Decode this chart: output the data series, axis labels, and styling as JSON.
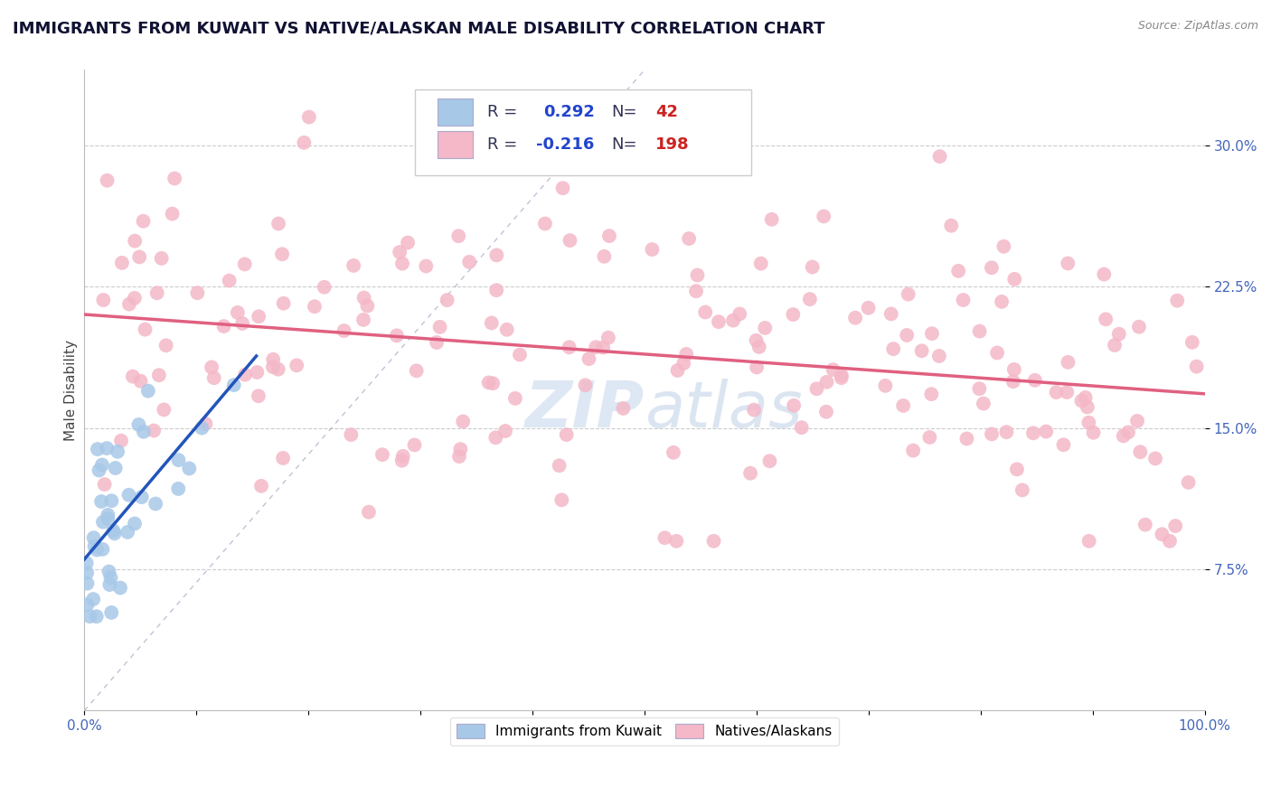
{
  "title": "IMMIGRANTS FROM KUWAIT VS NATIVE/ALASKAN MALE DISABILITY CORRELATION CHART",
  "source": "Source: ZipAtlas.com",
  "ylabel": "Male Disability",
  "blue_label": "Immigrants from Kuwait",
  "pink_label": "Natives/Alaskans",
  "blue_R": 0.292,
  "blue_N": 42,
  "pink_R": -0.216,
  "pink_N": 198,
  "xlim": [
    0.0,
    1.0
  ],
  "ylim": [
    0.0,
    0.34
  ],
  "ytick_vals": [
    0.075,
    0.15,
    0.225,
    0.3
  ],
  "ytick_labels": [
    "7.5%",
    "15.0%",
    "22.5%",
    "30.0%"
  ],
  "xtick_vals": [
    0.0,
    1.0
  ],
  "xtick_labels": [
    "0.0%",
    "100.0%"
  ],
  "blue_scatter_color": "#a8c8e8",
  "pink_scatter_color": "#f4b8c8",
  "blue_line_color": "#2255bb",
  "pink_line_color": "#e06080",
  "grid_color": "#cccccc",
  "diag_color": "#9999bb",
  "background_color": "#ffffff",
  "title_fontsize": 13,
  "tick_fontsize": 11,
  "tick_color": "#4466bb",
  "legend_fontsize": 13,
  "watermark_color": "#c8d8ee",
  "source_color": "#888888"
}
